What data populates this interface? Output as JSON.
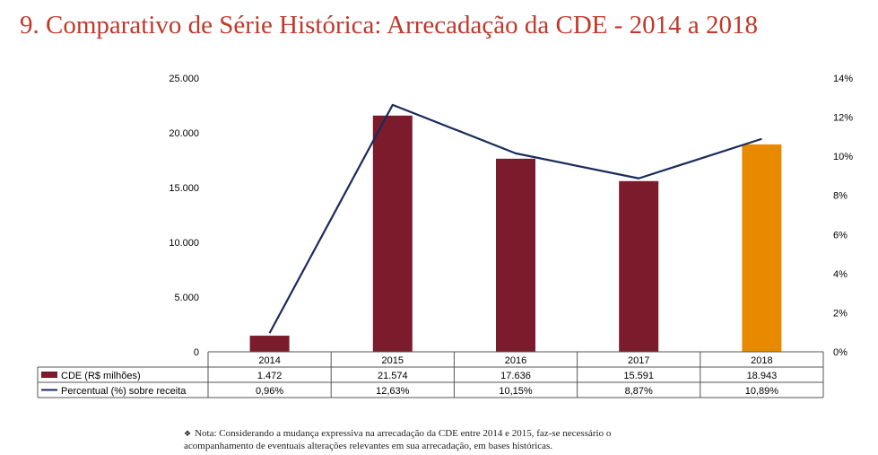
{
  "title": "9. Comparativo de Série Histórica: Arrecadação da CDE - 2014 a 2018",
  "note": {
    "bullet": "❖",
    "line1": "Nota: Considerando a mudança expressiva na arrecadação da CDE entre 2014 e 2015, faz-se necessário o",
    "line2": "acompanhamento de eventuais alterações relevantes em sua arrecadação, em bases históricas."
  },
  "colors": {
    "title": "#c0392b",
    "bar": "#7b1b2b",
    "bar_highlight": "#e88a00",
    "line": "#1a2a5c"
  },
  "chart_data": {
    "type": "bar",
    "categories": [
      "2014",
      "2015",
      "2016",
      "2017",
      "2018"
    ],
    "series": [
      {
        "name": "CDE (R$ milhões)",
        "type": "bar",
        "axis": "left",
        "values": [
          1472,
          21574,
          17636,
          15591,
          18943
        ],
        "labels": [
          "1.472",
          "21.574",
          "17.636",
          "15.591",
          "18.943"
        ],
        "highlight_index": 4
      },
      {
        "name": "Percentual (%) sobre receita",
        "type": "line",
        "axis": "right",
        "values": [
          0.96,
          12.63,
          10.15,
          8.87,
          10.89
        ],
        "labels": [
          "0,96%",
          "12,63%",
          "10,15%",
          "8,87%",
          "10,89%"
        ]
      }
    ],
    "y_left": {
      "ylim": [
        0,
        25000
      ],
      "ticks": [
        0,
        5000,
        10000,
        15000,
        20000,
        25000
      ],
      "tick_labels": [
        "0",
        "5.000",
        "10.000",
        "15.000",
        "20.000",
        "25.000"
      ]
    },
    "y_right": {
      "ylim": [
        0,
        14
      ],
      "ticks": [
        0,
        2,
        4,
        6,
        8,
        10,
        12,
        14
      ],
      "tick_labels": [
        "0%",
        "2%",
        "4%",
        "6%",
        "8%",
        "10%",
        "12%",
        "14%"
      ]
    },
    "grid": false,
    "legend": "data-table-below"
  }
}
